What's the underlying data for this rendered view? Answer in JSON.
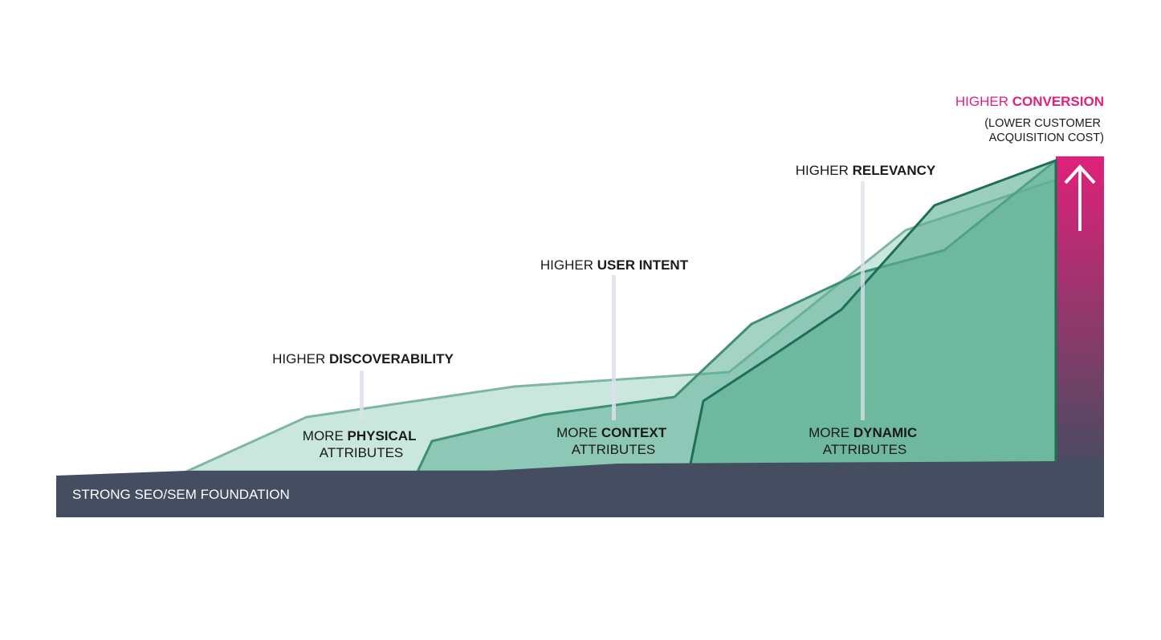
{
  "foundation": {
    "label": "STRONG SEO/SEM FOUNDATION"
  },
  "layers": [
    {
      "id": "physical",
      "top_prefix": "HIGHER ",
      "top_bold": "DISCOVERABILITY",
      "line1_prefix": "MORE ",
      "line1_bold": "PHYSICAL",
      "line2": "ATTRIBUTES"
    },
    {
      "id": "context",
      "top_prefix": "HIGHER ",
      "top_bold": "USER INTENT",
      "line1_prefix": "MORE ",
      "line1_bold": "CONTEXT",
      "line2": "ATTRIBUTES"
    },
    {
      "id": "dynamic",
      "top_prefix": "HIGHER ",
      "top_bold": "RELEVANCY",
      "line1_prefix": "MORE ",
      "line1_bold": "DYNAMIC",
      "line2": "ATTRIBUTES"
    }
  ],
  "conversion": {
    "prefix": "HIGHER ",
    "bold": "CONVERSION",
    "sub1": "(LOWER CUSTOMER",
    "sub2": "ACQUISITION COST)"
  },
  "colors": {
    "foundation": "#454d61",
    "layer_light": "#bfe3d7",
    "layer_mid": "#7cc3ac",
    "layer_dark": "#5aae93",
    "stroke_light": "#7fb5a4",
    "stroke_mid": "#3f8f77",
    "stroke_dark": "#1f6e57",
    "pink": "#e0217a",
    "guide": "#dde1e8"
  }
}
